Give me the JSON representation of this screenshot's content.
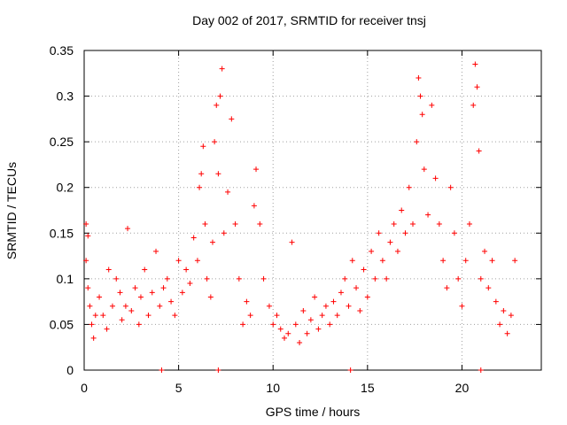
{
  "chart_data": {
    "type": "scatter",
    "title": "Day 002 of 2017, SRMTID for receiver tnsj",
    "xlabel": "GPS time / hours",
    "ylabel": "SRMTID / TECUs",
    "xlim": [
      0,
      24.2
    ],
    "ylim": [
      0,
      0.35
    ],
    "xticks": [
      0,
      5,
      10,
      15,
      20
    ],
    "xtick_labels": [
      "0",
      "5",
      "10",
      "15",
      "20"
    ],
    "yticks": [
      0,
      0.05,
      0.1,
      0.15,
      0.2,
      0.25,
      0.3,
      0.35
    ],
    "ytick_labels": [
      "0",
      "0.05",
      "0.1",
      "0.15",
      "0.2",
      "0.25",
      "0.3",
      "0.35"
    ],
    "grid": true,
    "marker": "plus",
    "color": "#ff0000",
    "series": [
      {
        "name": "SRMTID",
        "points": [
          [
            0.1,
            0.16
          ],
          [
            0.2,
            0.147
          ],
          [
            0.1,
            0.12
          ],
          [
            0.2,
            0.09
          ],
          [
            0.3,
            0.07
          ],
          [
            0.4,
            0.05
          ],
          [
            0.5,
            0.035
          ],
          [
            0.6,
            0.06
          ],
          [
            0.8,
            0.08
          ],
          [
            1.0,
            0.06
          ],
          [
            1.2,
            0.045
          ],
          [
            1.3,
            0.11
          ],
          [
            1.5,
            0.07
          ],
          [
            1.7,
            0.1
          ],
          [
            1.9,
            0.085
          ],
          [
            2.0,
            0.055
          ],
          [
            2.2,
            0.07
          ],
          [
            2.3,
            0.155
          ],
          [
            2.5,
            0.065
          ],
          [
            2.7,
            0.09
          ],
          [
            2.9,
            0.05
          ],
          [
            3.0,
            0.08
          ],
          [
            3.2,
            0.11
          ],
          [
            3.4,
            0.06
          ],
          [
            3.6,
            0.085
          ],
          [
            3.8,
            0.13
          ],
          [
            4.0,
            0.07
          ],
          [
            4.2,
            0.09
          ],
          [
            4.4,
            0.1
          ],
          [
            4.6,
            0.075
          ],
          [
            4.8,
            0.06
          ],
          [
            5.0,
            0.12
          ],
          [
            5.2,
            0.085
          ],
          [
            5.4,
            0.11
          ],
          [
            5.6,
            0.095
          ],
          [
            5.8,
            0.145
          ],
          [
            6.0,
            0.12
          ],
          [
            6.1,
            0.2
          ],
          [
            6.2,
            0.215
          ],
          [
            6.3,
            0.245
          ],
          [
            6.4,
            0.16
          ],
          [
            6.5,
            0.1
          ],
          [
            6.7,
            0.08
          ],
          [
            6.8,
            0.14
          ],
          [
            6.9,
            0.25
          ],
          [
            7.0,
            0.29
          ],
          [
            7.1,
            0.215
          ],
          [
            7.2,
            0.3
          ],
          [
            7.3,
            0.33
          ],
          [
            7.4,
            0.15
          ],
          [
            7.6,
            0.195
          ],
          [
            7.8,
            0.275
          ],
          [
            8.0,
            0.16
          ],
          [
            8.2,
            0.1
          ],
          [
            8.4,
            0.05
          ],
          [
            8.6,
            0.075
          ],
          [
            8.8,
            0.06
          ],
          [
            9.0,
            0.18
          ],
          [
            9.1,
            0.22
          ],
          [
            9.3,
            0.16
          ],
          [
            9.5,
            0.1
          ],
          [
            9.8,
            0.07
          ],
          [
            10.0,
            0.05
          ],
          [
            10.2,
            0.06
          ],
          [
            10.4,
            0.045
          ],
          [
            10.6,
            0.035
          ],
          [
            10.8,
            0.04
          ],
          [
            11.0,
            0.14
          ],
          [
            11.2,
            0.05
          ],
          [
            11.4,
            0.03
          ],
          [
            11.6,
            0.065
          ],
          [
            11.8,
            0.04
          ],
          [
            12.0,
            0.055
          ],
          [
            12.2,
            0.08
          ],
          [
            12.4,
            0.045
          ],
          [
            12.6,
            0.06
          ],
          [
            12.8,
            0.07
          ],
          [
            13.0,
            0.05
          ],
          [
            13.2,
            0.075
          ],
          [
            13.4,
            0.06
          ],
          [
            13.6,
            0.085
          ],
          [
            13.8,
            0.1
          ],
          [
            14.0,
            0.07
          ],
          [
            14.2,
            0.12
          ],
          [
            14.4,
            0.09
          ],
          [
            14.6,
            0.065
          ],
          [
            14.8,
            0.11
          ],
          [
            15.0,
            0.08
          ],
          [
            15.2,
            0.13
          ],
          [
            15.4,
            0.1
          ],
          [
            15.6,
            0.15
          ],
          [
            15.8,
            0.12
          ],
          [
            16.0,
            0.1
          ],
          [
            16.2,
            0.14
          ],
          [
            16.4,
            0.16
          ],
          [
            16.6,
            0.13
          ],
          [
            16.8,
            0.175
          ],
          [
            17.0,
            0.15
          ],
          [
            17.2,
            0.2
          ],
          [
            17.4,
            0.16
          ],
          [
            17.6,
            0.25
          ],
          [
            17.7,
            0.32
          ],
          [
            17.8,
            0.3
          ],
          [
            17.9,
            0.28
          ],
          [
            18.0,
            0.22
          ],
          [
            18.2,
            0.17
          ],
          [
            18.4,
            0.29
          ],
          [
            18.6,
            0.21
          ],
          [
            18.8,
            0.16
          ],
          [
            19.0,
            0.12
          ],
          [
            19.2,
            0.09
          ],
          [
            19.4,
            0.2
          ],
          [
            19.6,
            0.15
          ],
          [
            19.8,
            0.1
          ],
          [
            20.0,
            0.07
          ],
          [
            20.2,
            0.12
          ],
          [
            20.4,
            0.16
          ],
          [
            20.6,
            0.29
          ],
          [
            20.7,
            0.335
          ],
          [
            20.8,
            0.31
          ],
          [
            20.9,
            0.24
          ],
          [
            21.0,
            0.1
          ],
          [
            21.2,
            0.13
          ],
          [
            21.4,
            0.09
          ],
          [
            21.6,
            0.12
          ],
          [
            21.8,
            0.075
          ],
          [
            22.0,
            0.05
          ],
          [
            22.2,
            0.065
          ],
          [
            22.4,
            0.04
          ],
          [
            22.6,
            0.06
          ],
          [
            22.8,
            0.12
          ],
          [
            4.1,
            0.0
          ],
          [
            7.1,
            0.0
          ],
          [
            14.1,
            0.0
          ],
          [
            21.0,
            0.0
          ]
        ]
      }
    ]
  }
}
